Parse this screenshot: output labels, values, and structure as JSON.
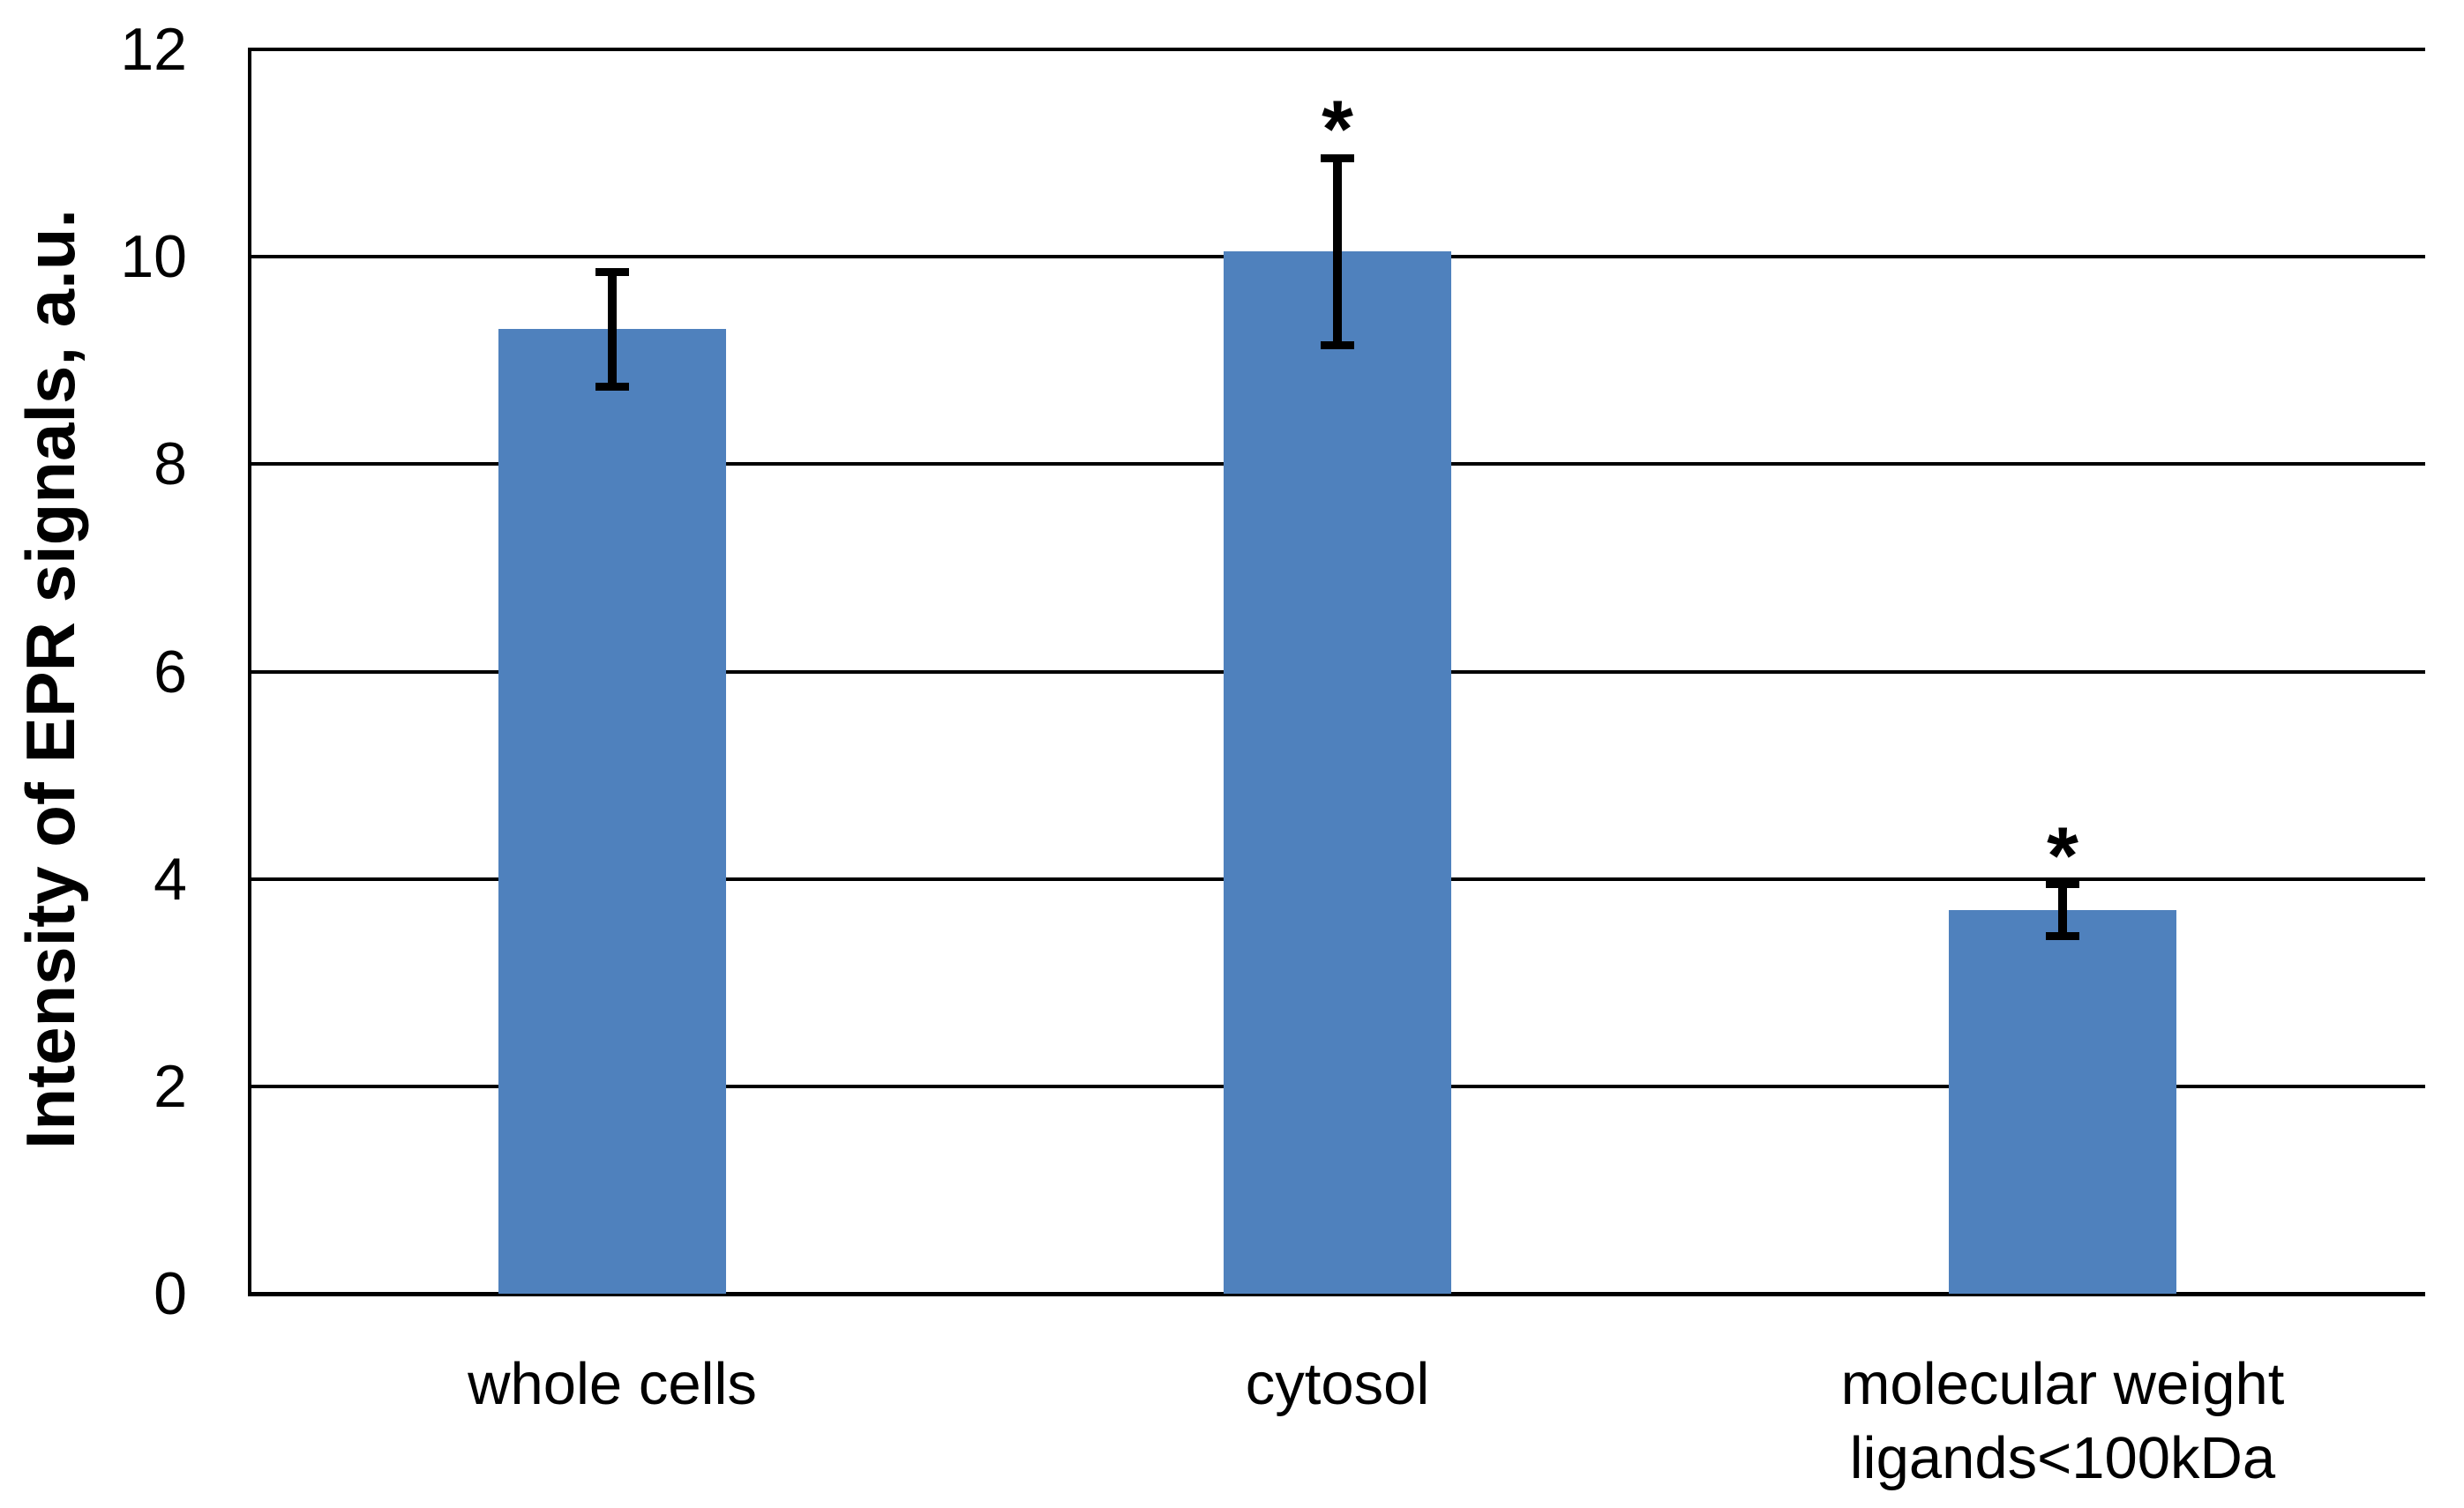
{
  "chart_data": {
    "type": "bar",
    "title": "",
    "ylabel": "Intensity of EPR signals, a.u.",
    "xlabel": "",
    "categories": [
      "whole cells",
      "cytosol",
      "molecular weight ligands<100kDa"
    ],
    "category_display_lines": [
      [
        "whole cells"
      ],
      [
        "cytosol"
      ],
      [
        "molecular weight",
        "ligands<100kDa"
      ]
    ],
    "values": [
      9.3,
      10.05,
      3.7
    ],
    "error_bars": [
      0.55,
      0.9,
      0.25
    ],
    "significance_markers": [
      "",
      "*",
      "*"
    ],
    "y_ticks": [
      0,
      2,
      4,
      6,
      8,
      10,
      12
    ],
    "ylim": [
      0,
      12
    ],
    "grid": true,
    "legend": false,
    "bar_color": "#4f81bd",
    "axis_color": "#000000",
    "text_color": "#000000"
  }
}
